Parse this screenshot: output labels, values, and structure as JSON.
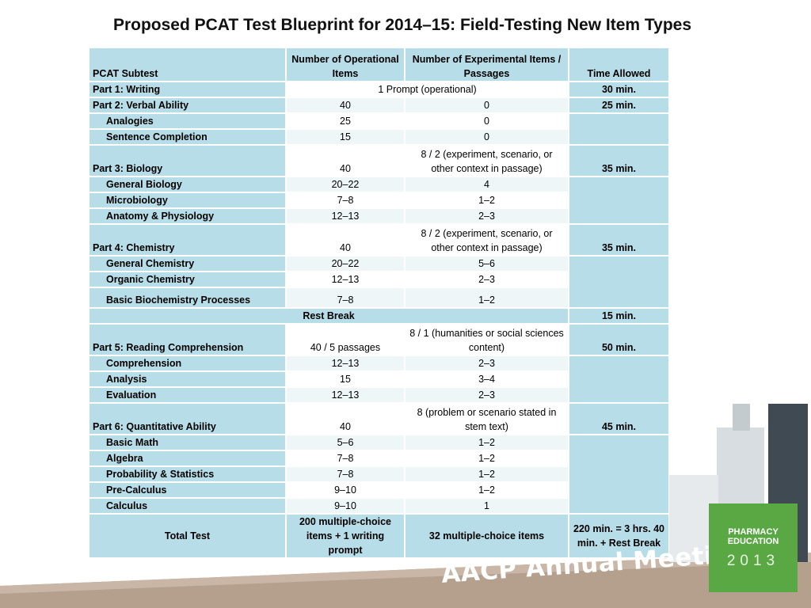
{
  "title": "Proposed PCAT Test Blueprint for 2014–15: Field-Testing New Item Types",
  "header": {
    "subtest": "PCAT Subtest",
    "operational": "Number of Operational Items",
    "experimental": "Number of Experimental Items / Passages",
    "time": "Time Allowed"
  },
  "rows": {
    "writing": {
      "label": "Part 1: Writing",
      "items": "1 Prompt (operational)",
      "time": "30 min."
    },
    "verbal": {
      "label": "Part 2: Verbal Ability",
      "op": "40",
      "exp": "0",
      "time": "25 min."
    },
    "analogies": {
      "label": "Analogies",
      "op": "25",
      "exp": "0"
    },
    "sentence": {
      "label": "Sentence Completion",
      "op": "15",
      "exp": "0"
    },
    "biology": {
      "label": "Part 3: Biology",
      "op": "40",
      "exp": "8 / 2 (experiment, scenario, or other context in passage)",
      "time": "35 min."
    },
    "genbio": {
      "label": "General Biology",
      "op": "20–22",
      "exp": "4"
    },
    "micro": {
      "label": "Microbiology",
      "op": "7–8",
      "exp": "1–2"
    },
    "anat": {
      "label": "Anatomy & Physiology",
      "op": "12–13",
      "exp": "2–3"
    },
    "chem": {
      "label": "Part 4: Chemistry",
      "op": "40",
      "exp": "8 / 2 (experiment, scenario, or other context in passage)",
      "time": "35 min."
    },
    "genchem": {
      "label": "General Chemistry",
      "op": "20–22",
      "exp": "5–6"
    },
    "orgchem": {
      "label": "Organic Chemistry",
      "op": "12–13",
      "exp": "2–3"
    },
    "biochem": {
      "label": "Basic Biochemistry Processes",
      "op": "7–8",
      "exp": "1–2"
    },
    "rest": {
      "label": "Rest Break",
      "time": "15 min."
    },
    "reading": {
      "label": "Part 5: Reading Comprehension",
      "op": "40 / 5 passages",
      "exp": "8 / 1 (humanities or social sciences content)",
      "time": "50 min."
    },
    "comp": {
      "label": "Comprehension",
      "op": "12–13",
      "exp": "2–3"
    },
    "analysis": {
      "label": "Analysis",
      "op": "15",
      "exp": "3–4"
    },
    "evaluation": {
      "label": "Evaluation",
      "op": "12–13",
      "exp": "2–3"
    },
    "quant": {
      "label": "Part 6: Quantitative Ability",
      "op": "40",
      "exp": "8 (problem or scenario stated in stem text)",
      "time": "45 min."
    },
    "basicmath": {
      "label": "Basic Math",
      "op": "5–6",
      "exp": "1–2"
    },
    "algebra": {
      "label": "Algebra",
      "op": "7–8",
      "exp": "1–2"
    },
    "prob": {
      "label": "Probability & Statistics",
      "op": "7–8",
      "exp": "1–2"
    },
    "precalc": {
      "label": "Pre-Calculus",
      "op": "9–10",
      "exp": "1–2"
    },
    "calc": {
      "label": "Calculus",
      "op": "9–10",
      "exp": "1"
    },
    "total": {
      "label": "Total Test",
      "op": "200 multiple-choice items + 1 writing prompt",
      "exp": "32 multiple-choice items",
      "time": "220 min. = 3 hrs. 40 min. + Rest Break"
    }
  },
  "footer": {
    "meeting": "AACP Annual Meeting",
    "logo_line1": "PHARMACY",
    "logo_line2": "EDUCATION",
    "logo_year": "2013"
  },
  "colors": {
    "header_bg": "#b7dde8",
    "row_alt": "#eef6f8",
    "logo_green": "#5aa844",
    "floor": "#b59f8d"
  }
}
